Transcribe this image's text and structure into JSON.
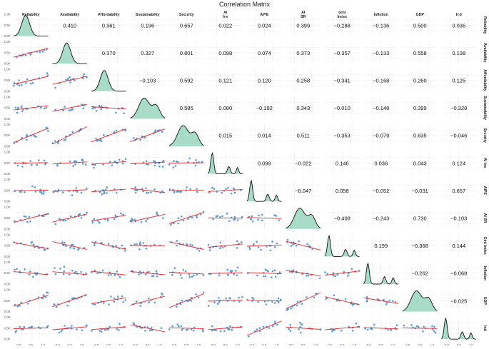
{
  "chart_data": {
    "type": "scatter-matrix",
    "title": "Correlation Matrix",
    "variables": [
      "Reliability",
      "Availability",
      "Affordability",
      "Sustainability",
      "Security",
      "AI Inv",
      "AIPE",
      "AI SR",
      "Gini Index",
      "Inflation",
      "GDP",
      "Ind"
    ],
    "correlations": [
      [
        1.0,
        0.41,
        0.361,
        0.196,
        0.657,
        0.022,
        0.024,
        0.399,
        -0.288,
        -0.136,
        0.5,
        0.036
      ],
      [
        0.41,
        1.0,
        0.37,
        0.327,
        0.801,
        0.098,
        0.074,
        0.373,
        -0.357,
        -0.133,
        0.558,
        0.138
      ],
      [
        0.361,
        0.37,
        1.0,
        -0.103,
        0.592,
        0.121,
        0.12,
        0.258,
        -0.341,
        -0.168,
        0.26,
        0.125
      ],
      [
        0.196,
        0.327,
        -0.103,
        1.0,
        0.585,
        0.08,
        -0.192,
        0.343,
        -0.01,
        -0.148,
        0.399,
        -0.328
      ],
      [
        0.657,
        0.801,
        0.592,
        0.585,
        1.0,
        0.015,
        0.014,
        0.511,
        -0.353,
        -0.079,
        0.635,
        -0.046
      ],
      [
        0.022,
        0.098,
        0.121,
        0.08,
        0.015,
        1.0,
        0.099,
        -0.022,
        0.146,
        0.036,
        0.043,
        0.124
      ],
      [
        0.024,
        0.074,
        0.12,
        -0.192,
        0.014,
        0.099,
        1.0,
        -0.047,
        0.058,
        -0.052,
        -0.031,
        0.657
      ],
      [
        0.399,
        0.373,
        0.258,
        0.343,
        0.511,
        -0.022,
        -0.047,
        1.0,
        -0.408,
        -0.243,
        0.73,
        -0.103
      ],
      [
        -0.288,
        -0.357,
        -0.341,
        -0.01,
        -0.353,
        0.146,
        0.058,
        -0.408,
        1.0,
        0.199,
        -0.368,
        0.144
      ],
      [
        -0.136,
        -0.133,
        -0.168,
        -0.148,
        -0.079,
        0.036,
        -0.052,
        -0.243,
        0.199,
        1.0,
        -0.262,
        -0.068
      ],
      [
        0.5,
        0.558,
        0.26,
        0.399,
        0.635,
        0.043,
        -0.031,
        0.73,
        -0.368,
        -0.262,
        1.0,
        -0.025
      ],
      [
        0.036,
        0.138,
        0.125,
        -0.328,
        -0.046,
        0.124,
        0.657,
        -0.103,
        0.144,
        -0.068,
        -0.025,
        1.0
      ]
    ],
    "x_tick_labels": [
      "0.0",
      "0.5",
      "1.0"
    ],
    "y_tick_labels": [
      "0.00",
      "0.25",
      "0.50",
      "0.75",
      "1.00"
    ],
    "colors": {
      "scatter": "#5b9bd5",
      "fit_line": "#e8262a",
      "density_fill": "#a8dcc8",
      "density_line": "#111111",
      "grid": "#ebebeb"
    },
    "layout": "lower triangle: scatter with linear fit; diagonal: density; upper triangle: correlation coefficients"
  }
}
